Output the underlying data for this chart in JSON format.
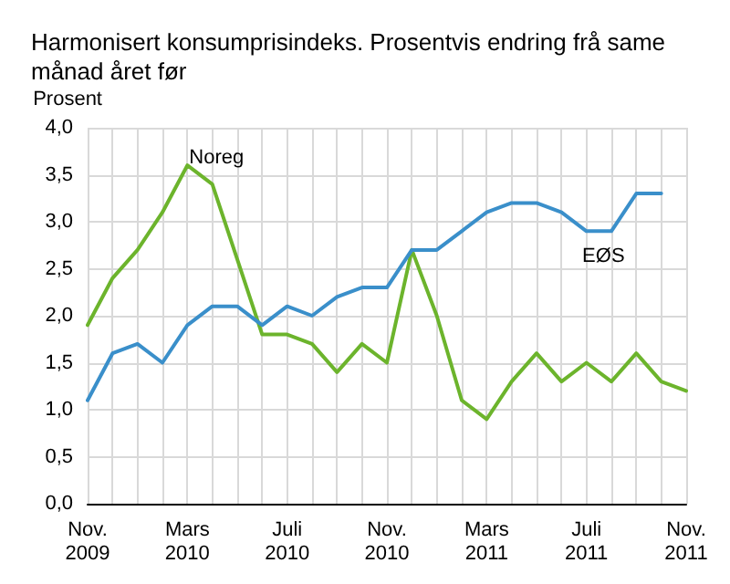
{
  "chart_data": {
    "type": "line",
    "title": "Harmonisert konsumprisindeks. Prosentvis endring frå same månad året før",
    "ylabel": "Prosent",
    "categories": [
      "Nov. 2009",
      null,
      null,
      null,
      "Mars 2010",
      null,
      null,
      null,
      "Juli 2010",
      null,
      null,
      null,
      "Nov. 2010",
      null,
      null,
      null,
      "Mars 2011",
      null,
      null,
      null,
      "Juli 2011",
      null,
      null,
      null,
      "Nov. 2011"
    ],
    "series": [
      {
        "name": "Noreg",
        "color": "#6cb42c",
        "values": [
          1.9,
          2.4,
          2.7,
          3.1,
          3.6,
          3.4,
          2.6,
          1.8,
          1.8,
          1.7,
          1.4,
          1.7,
          1.5,
          2.7,
          2.0,
          1.1,
          0.9,
          1.3,
          1.6,
          1.3,
          1.5,
          1.3,
          1.6,
          1.3,
          1.2
        ]
      },
      {
        "name": "EØS",
        "color": "#3a8fca",
        "values": [
          1.1,
          1.6,
          1.7,
          1.5,
          1.9,
          2.1,
          2.1,
          1.9,
          2.1,
          2.0,
          2.2,
          2.3,
          2.3,
          2.7,
          2.7,
          2.9,
          3.1,
          3.2,
          3.2,
          3.1,
          2.9,
          2.9,
          3.3,
          3.3,
          null
        ]
      }
    ],
    "ylim": [
      0,
      4
    ],
    "yticks": [
      {
        "value": 0,
        "label": "0,0"
      },
      {
        "value": 0.5,
        "label": "0,5"
      },
      {
        "value": 1,
        "label": "1,0"
      },
      {
        "value": 1.5,
        "label": "1,5"
      },
      {
        "value": 2,
        "label": "2,0"
      },
      {
        "value": 2.5,
        "label": "2,5"
      },
      {
        "value": 3,
        "label": "3,0"
      },
      {
        "value": 3.5,
        "label": "3,5"
      },
      {
        "value": 4,
        "label": "4,0"
      }
    ],
    "grid": true,
    "legend": false,
    "marker": "none",
    "line_style": "solid"
  }
}
